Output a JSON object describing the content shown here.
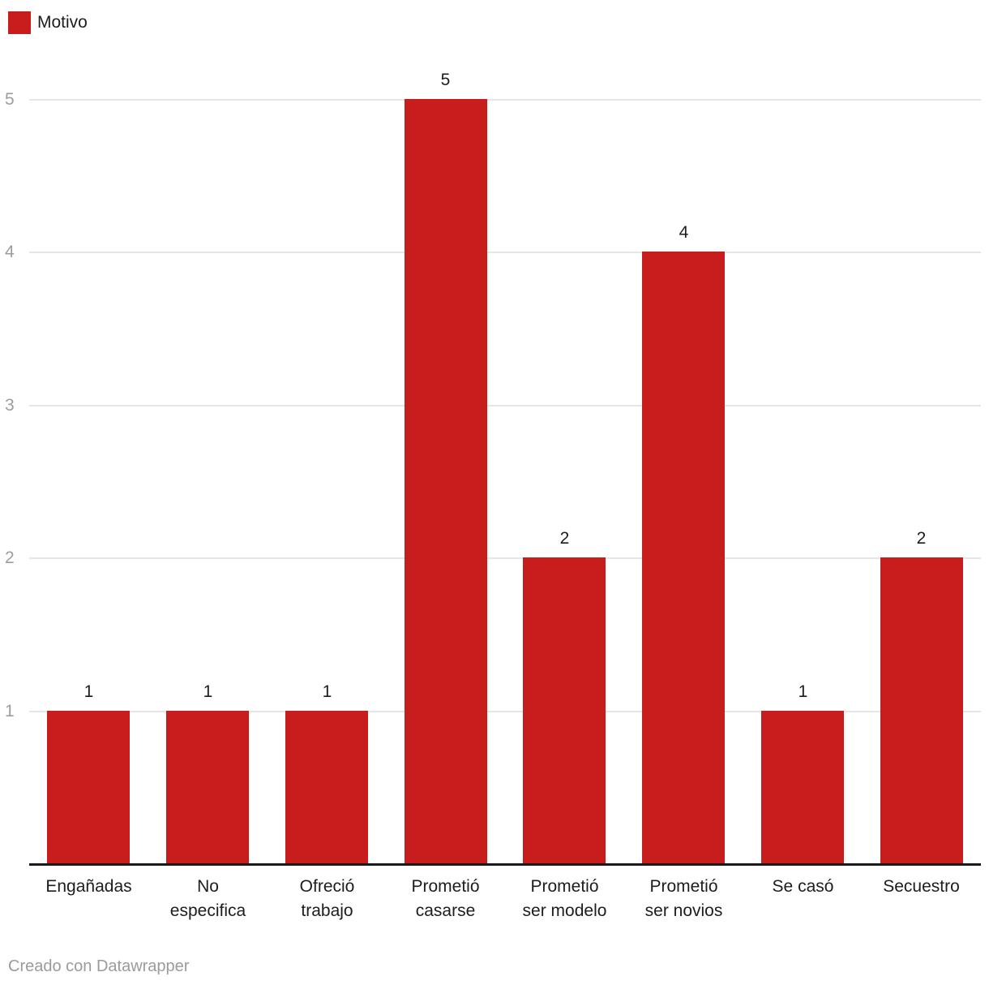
{
  "legend": {
    "label": "Motivo",
    "swatch_color": "#c71e1d"
  },
  "footer": {
    "text": "Creado con Datawrapper"
  },
  "colors": {
    "bar": "#c71e1d",
    "axis": "#1a1a1a",
    "gridline": "#e6e6e6",
    "tick_label": "#9d9d9d",
    "value_label": "#1d1d1d",
    "category_label": "#1d1d1d",
    "footer_text": "#9b9b9b"
  },
  "chart_data": {
    "type": "bar",
    "title": "",
    "series_name": "Motivo",
    "categories": [
      "Engañadas",
      "No especifica",
      "Ofreció trabajo",
      "Prometió casarse",
      "Prometió ser modelo",
      "Prometió ser novios",
      "Se casó",
      "Secuestro"
    ],
    "values": [
      1,
      1,
      1,
      5,
      2,
      4,
      1,
      2
    ],
    "xlabel": "",
    "ylabel": "",
    "ylim": [
      0,
      5
    ],
    "yticks": [
      1,
      2,
      3,
      4,
      5
    ],
    "grid": true,
    "value_labels": true,
    "legend_position": "top-left"
  }
}
